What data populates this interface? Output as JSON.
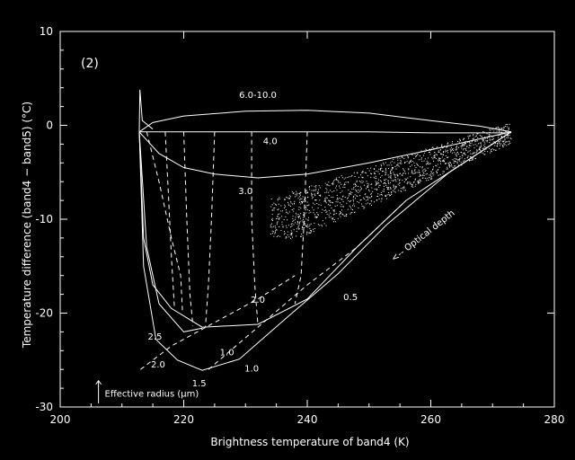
{
  "chart_data": {
    "type": "line",
    "panel_label": "(2)",
    "xlabel": "Brightness temperature of band4 (K)",
    "ylabel": "Temperature difference (band4 − band5) (°C)",
    "xlim": [
      200,
      280
    ],
    "ylim": [
      -30,
      10
    ],
    "xticks": [
      200,
      220,
      240,
      260,
      280
    ],
    "yticks": [
      -30,
      -20,
      -10,
      0,
      10
    ],
    "grid": false,
    "colors": {
      "background": "#000000",
      "foreground": "#ffffff"
    },
    "effective_radius_curves": [
      {
        "label": "6.0-10.0",
        "points": [
          [
            212.8,
            -0.7
          ],
          [
            215,
            0.3
          ],
          [
            220,
            1.0
          ],
          [
            230,
            1.5
          ],
          [
            240,
            1.6
          ],
          [
            250,
            1.3
          ],
          [
            260,
            0.5
          ],
          [
            268,
            -0.1
          ],
          [
            273,
            -0.7
          ]
        ]
      },
      {
        "label": "4.0",
        "points": [
          [
            212.8,
            -0.7
          ],
          [
            220,
            -0.7
          ],
          [
            230,
            -0.7
          ],
          [
            240,
            -0.7
          ],
          [
            250,
            -0.7
          ],
          [
            260,
            -0.8
          ],
          [
            273,
            -0.8
          ]
        ]
      },
      {
        "label": "3.0",
        "points": [
          [
            212.8,
            -0.7
          ],
          [
            216,
            -3.0
          ],
          [
            220,
            -4.5
          ],
          [
            225,
            -5.2
          ],
          [
            232,
            -5.6
          ],
          [
            240,
            -5.2
          ],
          [
            250,
            -4.0
          ],
          [
            260,
            -2.6
          ],
          [
            273,
            -0.7
          ]
        ]
      },
      {
        "label": "2.0",
        "points": [
          [
            212.8,
            -0.7
          ],
          [
            213.5,
            -12
          ],
          [
            215,
            -17
          ],
          [
            218,
            -19.5
          ],
          [
            223,
            -21.5
          ],
          [
            232,
            -21.2
          ],
          [
            240,
            -18.5
          ],
          [
            248,
            -13
          ],
          [
            256,
            -8
          ],
          [
            273,
            -0.7
          ]
        ]
      },
      {
        "label": "2.5",
        "points": [
          [
            212.8,
            -0.7
          ],
          [
            214,
            -13
          ],
          [
            216,
            -19
          ],
          [
            220,
            -22
          ],
          [
            223,
            -21.6
          ]
        ]
      },
      {
        "label": "1.5",
        "points": [
          [
            212.8,
            -0.7
          ],
          [
            213.5,
            -15
          ],
          [
            215.5,
            -22.8
          ],
          [
            219,
            -25
          ],
          [
            223,
            -26.1
          ],
          [
            229,
            -24.9
          ],
          [
            237,
            -20.3
          ],
          [
            245,
            -15.8
          ],
          [
            253,
            -10.5
          ],
          [
            263,
            -5.0
          ],
          [
            273,
            -0.7
          ]
        ]
      }
    ],
    "optical_depth_curves": [
      {
        "label": "1.0",
        "points": [
          [
            214,
            -0.7
          ],
          [
            216,
            -6
          ],
          [
            218,
            -12
          ],
          [
            219.5,
            -16
          ],
          [
            219.8,
            -19.8
          ]
        ]
      },
      {
        "label": "",
        "points": [
          [
            217,
            -0.7
          ],
          [
            217.5,
            -7
          ],
          [
            218,
            -14
          ],
          [
            218.5,
            -19.5
          ]
        ]
      },
      {
        "label": "",
        "points": [
          [
            220,
            -0.7
          ],
          [
            220.5,
            -10
          ],
          [
            221,
            -18
          ],
          [
            221.5,
            -21.4
          ]
        ]
      },
      {
        "label": "",
        "points": [
          [
            225,
            -0.7
          ],
          [
            224.5,
            -10
          ],
          [
            224,
            -17
          ],
          [
            223.5,
            -21.5
          ]
        ]
      },
      {
        "label": "",
        "points": [
          [
            231,
            -0.7
          ],
          [
            231,
            -10
          ],
          [
            231.5,
            -17
          ],
          [
            232,
            -21.2
          ]
        ]
      },
      {
        "label": "",
        "points": [
          [
            240,
            -0.7
          ],
          [
            239.5,
            -10
          ],
          [
            239,
            -16
          ],
          [
            238,
            -19
          ]
        ]
      },
      {
        "label": "1.0",
        "points": [
          [
            213,
            -26
          ],
          [
            218,
            -23.5
          ],
          [
            225,
            -21
          ],
          [
            232,
            -18.5
          ],
          [
            238,
            -16
          ]
        ]
      },
      {
        "label": "0.5",
        "points": [
          [
            224,
            -26
          ],
          [
            232,
            -21.5
          ],
          [
            240,
            -17
          ],
          [
            248,
            -13
          ],
          [
            256,
            -8
          ]
        ]
      }
    ],
    "scatter_cloud": {
      "x_range": [
        234,
        273
      ],
      "y_range": [
        -12,
        1
      ],
      "density": "high"
    },
    "annotations": {
      "curve_labels": [
        "6.0-10.0",
        "4.0",
        "3.0",
        "2.0",
        "2.5",
        "2.0",
        "1.5",
        "1.0",
        "1.0",
        "0.5"
      ],
      "optical_depth": "<-- Optical depth",
      "effective_radius": "Effective radius (μm)"
    }
  }
}
